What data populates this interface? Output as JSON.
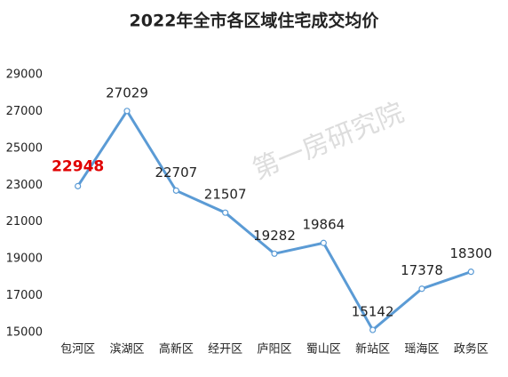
{
  "chart_data": {
    "type": "line",
    "title": "2022年全市各区域住宅成交均价",
    "categories": [
      "包河区",
      "滨湖区",
      "高新区",
      "经开区",
      "庐阳区",
      "蜀山区",
      "新站区",
      "瑶海区",
      "政务区"
    ],
    "values": [
      22948,
      27029,
      22707,
      21507,
      19282,
      19864,
      15142,
      17378,
      18300
    ],
    "color": "#5b9bd5",
    "ylim": [
      15000,
      29000
    ],
    "yticks": [
      15000,
      17000,
      19000,
      21000,
      23000,
      25000,
      27000,
      29000
    ],
    "grid": false,
    "highlight_index": 0,
    "highlight_color": "#e00000",
    "watermark": "第一房研究院"
  }
}
